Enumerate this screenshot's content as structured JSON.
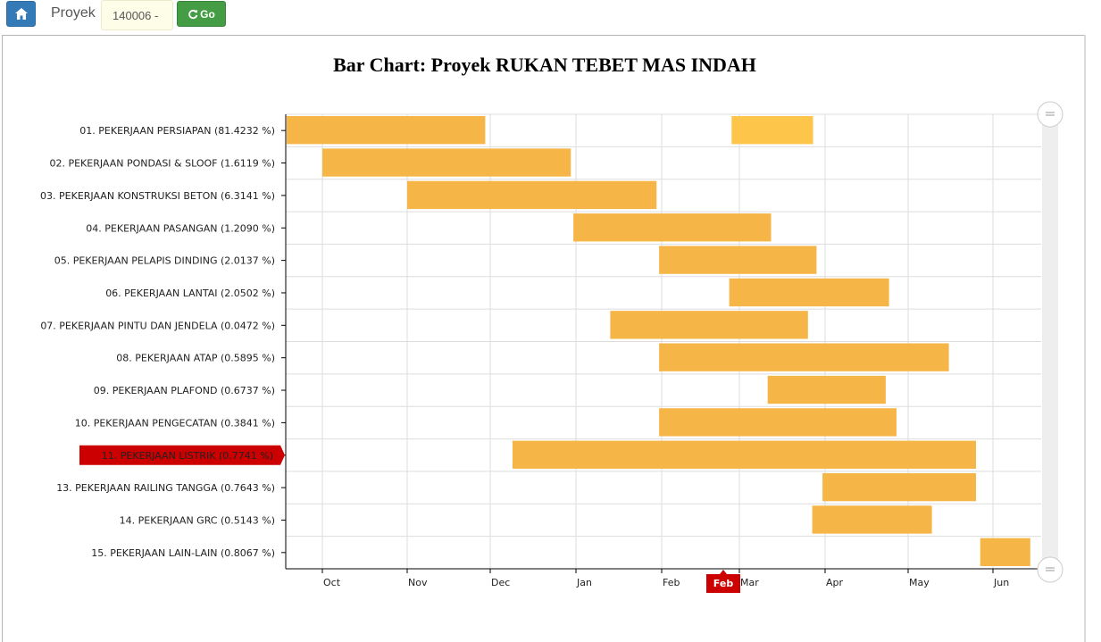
{
  "toolbar": {
    "home_icon": "home-icon",
    "proyek_label": "Proyek",
    "proyek_value": "140006 -",
    "go_label": "Go",
    "go_icon": "refresh-icon",
    "home_color": "#337ab7",
    "go_color": "#449d44"
  },
  "chart_data": {
    "type": "bar",
    "orientation": "horizontal-gantt",
    "title": "Bar Chart: Proyek RUKAN TEBET MAS INDAH",
    "x_ticks": [
      "Oct",
      "Nov",
      "Dec",
      "Jan",
      "Feb",
      "Mar",
      "Apr",
      "May",
      "Jun"
    ],
    "cursor_label": "Feb",
    "highlighted_category": "11. PEKERJAAN LISTRIK (0.7741 %)",
    "bar_color": "#f6b547",
    "highlight_bar_color": "#fdc64a",
    "highlight_color": "#cc0000",
    "grid": true,
    "categories": [
      "01. PEKERJAAN PERSIAPAN (81.4232 %)",
      "02. PEKERJAAN PONDASI & SLOOF (1.6119 %)",
      "03. PEKERJAAN KONSTRUKSI BETON (6.3141 %)",
      "04. PEKERJAAN PASANGAN (1.2090 %)",
      "05. PEKERJAAN PELAPIS DINDING (2.0137 %)",
      "06. PEKERJAAN LANTAI (2.0502 %)",
      "07. PEKERJAAN PINTU DAN JENDELA (0.0472 %)",
      "08. PEKERJAAN ATAP (0.5895 %)",
      "09. PEKERJAAN PLAFOND (0.6737 %)",
      "10. PEKERJAAN PENGECATAN (0.3841 %)",
      "11. PEKERJAAN LISTRIK (0.7741 %)",
      "13. PEKERJAAN RAILING TANGGA (0.7643 %)",
      "14. PEKERJAAN GRC (0.5143 %)",
      "15. PEKERJAAN LAIN-LAIN (0.8067 %)"
    ],
    "bars": [
      [
        {
          "start": -0.42,
          "end": 1.94
        },
        {
          "start": 4.9,
          "end": 5.86,
          "highlight": true
        }
      ],
      [
        {
          "start": 0.0,
          "end": 2.94
        }
      ],
      [
        {
          "start": 1.0,
          "end": 3.94
        }
      ],
      [
        {
          "start": 2.97,
          "end": 5.37
        }
      ],
      [
        {
          "start": 3.97,
          "end": 5.9
        }
      ],
      [
        {
          "start": 4.87,
          "end": 6.77
        }
      ],
      [
        {
          "start": 3.4,
          "end": 5.8
        }
      ],
      [
        {
          "start": 3.97,
          "end": 7.48
        }
      ],
      [
        {
          "start": 5.33,
          "end": 6.73
        }
      ],
      [
        {
          "start": 3.97,
          "end": 6.86
        }
      ],
      [
        {
          "start": 2.26,
          "end": 7.8
        }
      ],
      [
        {
          "start": 5.97,
          "end": 7.8
        }
      ],
      [
        {
          "start": 5.85,
          "end": 7.28
        }
      ],
      [
        {
          "start": 7.85,
          "end": 8.44
        }
      ]
    ]
  }
}
